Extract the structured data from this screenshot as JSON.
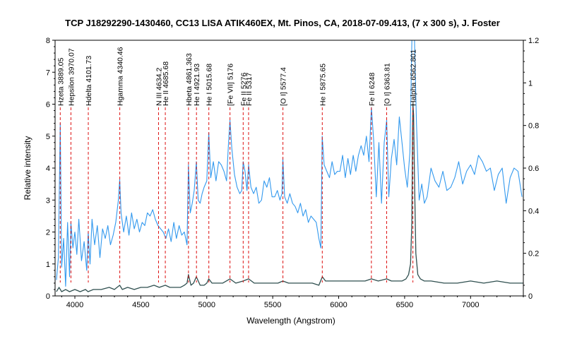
{
  "chart_data": {
    "type": "line",
    "title": "TCP J18292290-1430460, CC13 LISA ATIK460EX, Mt. Pinos, CA, 2018-07-09.413, (7 x 300 s), J. Foster",
    "xlabel": "Wavelength (Angstrom)",
    "ylabel": "Relative intensity",
    "xlim": [
      3850,
      7400
    ],
    "ylim": [
      0,
      8
    ],
    "y2lim": [
      0,
      1.2
    ],
    "xticks": [
      "4000",
      "4500",
      "5000",
      "5500",
      "6000",
      "6500",
      "7000"
    ],
    "yticks": [
      "0",
      "1",
      "2",
      "3",
      "4",
      "5",
      "6",
      "7",
      "8"
    ],
    "y2ticks": [
      "0",
      "0.2",
      "0.4",
      "0.6",
      "0.8",
      "1",
      "1.2"
    ],
    "grid": false,
    "colors": {
      "series_blue": "#3399ee",
      "series_dark": "#2f4f4f",
      "marker_line": "#dd1111"
    },
    "series": [
      {
        "axis": "left",
        "color": "#3399ee",
        "x": [
          3860,
          3875,
          3889,
          3900,
          3915,
          3930,
          3945,
          3960,
          3970,
          3985,
          4000,
          4015,
          4030,
          4050,
          4070,
          4090,
          4101,
          4115,
          4130,
          4150,
          4170,
          4190,
          4210,
          4230,
          4250,
          4270,
          4290,
          4310,
          4330,
          4340,
          4350,
          4370,
          4390,
          4410,
          4430,
          4450,
          4470,
          4490,
          4510,
          4530,
          4550,
          4570,
          4590,
          4610,
          4630,
          4650,
          4670,
          4690,
          4710,
          4730,
          4750,
          4770,
          4790,
          4810,
          4830,
          4850,
          4861,
          4875,
          4890,
          4905,
          4921,
          4935,
          4950,
          4965,
          4980,
          5000,
          5015,
          5030,
          5050,
          5070,
          5090,
          5110,
          5130,
          5150,
          5165,
          5176,
          5190,
          5210,
          5230,
          5250,
          5265,
          5276,
          5290,
          5305,
          5317,
          5335,
          5355,
          5375,
          5395,
          5415,
          5435,
          5455,
          5475,
          5495,
          5515,
          5535,
          5555,
          5570,
          5577,
          5590,
          5610,
          5630,
          5650,
          5670,
          5690,
          5710,
          5730,
          5750,
          5770,
          5790,
          5810,
          5830,
          5850,
          5865,
          5875,
          5890,
          5910,
          5930,
          5950,
          5970,
          5990,
          6010,
          6030,
          6050,
          6070,
          6090,
          6110,
          6130,
          6150,
          6170,
          6190,
          6210,
          6230,
          6248,
          6265,
          6285,
          6305,
          6325,
          6345,
          6364,
          6380,
          6400,
          6420,
          6440,
          6460,
          6480,
          6500,
          6520,
          6540,
          6555,
          6563,
          6575,
          6590,
          6610,
          6630,
          6650,
          6670,
          6700,
          6730,
          6760,
          6790,
          6820,
          6850,
          6880,
          6910,
          6940,
          6970,
          7000,
          7030,
          7060,
          7090,
          7120,
          7150,
          7180,
          7210,
          7240,
          7270,
          7300,
          7330,
          7360,
          7390
        ],
        "y": [
          0.5,
          1.2,
          5.4,
          0.9,
          1.8,
          0.3,
          2.3,
          0.6,
          2.3,
          1.5,
          2.0,
          1.3,
          2.4,
          1.1,
          1.7,
          0.8,
          2.0,
          1.0,
          2.4,
          1.6,
          2.2,
          1.2,
          2.1,
          1.8,
          2.2,
          1.6,
          1.9,
          2.3,
          3.0,
          3.65,
          2.6,
          2.0,
          2.5,
          1.9,
          2.6,
          2.1,
          2.4,
          2.0,
          2.3,
          2.2,
          2.6,
          2.5,
          2.7,
          2.4,
          2.2,
          2.1,
          2.0,
          1.8,
          2.1,
          1.7,
          2.3,
          1.8,
          2.2,
          1.9,
          2.0,
          1.6,
          4.1,
          2.6,
          2.9,
          3.3,
          4.2,
          3.0,
          2.9,
          3.2,
          3.4,
          3.6,
          5.1,
          3.7,
          4.2,
          3.6,
          4.2,
          4.1,
          3.9,
          3.6,
          4.8,
          5.5,
          4.6,
          3.8,
          3.4,
          3.2,
          3.3,
          4.2,
          3.9,
          3.3,
          4.1,
          3.4,
          3.2,
          3.4,
          2.9,
          3.0,
          3.6,
          3.4,
          3.7,
          3.1,
          3.1,
          3.3,
          3.0,
          3.2,
          4.3,
          3.1,
          2.9,
          3.2,
          2.9,
          2.8,
          2.6,
          2.9,
          2.5,
          2.7,
          2.3,
          2.5,
          2.4,
          2.3,
          1.8,
          1.5,
          5.0,
          4.1,
          3.9,
          3.7,
          4.2,
          3.8,
          3.9,
          3.9,
          4.4,
          3.7,
          4.3,
          3.8,
          4.4,
          3.9,
          4.4,
          4.7,
          4.4,
          5.0,
          4.2,
          5.9,
          4.9,
          3.1,
          4.8,
          2.9,
          4.8,
          5.5,
          3.1,
          4.3,
          4.9,
          4.1,
          5.6,
          4.8,
          4.0,
          3.4,
          4.5,
          8.0,
          8.0,
          8.0,
          5.4,
          3.0,
          3.5,
          2.9,
          3.1,
          4.0,
          3.6,
          3.4,
          3.9,
          3.3,
          3.4,
          3.7,
          4.2,
          3.5,
          3.9,
          4.1,
          3.8,
          4.4,
          4.2,
          3.9,
          4.0,
          3.3,
          3.8,
          4.0,
          2.9,
          3.7,
          4.0,
          3.9,
          3.1
        ]
      },
      {
        "axis": "right",
        "color": "#2f4f4f",
        "x": [
          3860,
          3880,
          3900,
          3930,
          3960,
          4000,
          4040,
          4080,
          4100,
          4140,
          4200,
          4260,
          4300,
          4340,
          4360,
          4400,
          4450,
          4500,
          4550,
          4600,
          4640,
          4686,
          4720,
          4760,
          4800,
          4830,
          4850,
          4861,
          4880,
          4900,
          4921,
          4950,
          4980,
          5000,
          5015,
          5040,
          5080,
          5120,
          5176,
          5220,
          5276,
          5317,
          5360,
          5420,
          5480,
          5540,
          5577,
          5620,
          5680,
          5740,
          5800,
          5850,
          5876,
          5900,
          5950,
          6000,
          6050,
          6100,
          6150,
          6200,
          6248,
          6300,
          6364,
          6400,
          6440,
          6480,
          6510,
          6530,
          6545,
          6555,
          6560,
          6563,
          6568,
          6575,
          6585,
          6600,
          6620,
          6650,
          6700,
          6800,
          6900,
          7000,
          7100,
          7200,
          7300,
          7400
        ],
        "y": [
          0.02,
          0.04,
          0.02,
          0.03,
          0.02,
          0.03,
          0.02,
          0.03,
          0.02,
          0.03,
          0.03,
          0.04,
          0.03,
          0.05,
          0.03,
          0.04,
          0.03,
          0.04,
          0.04,
          0.05,
          0.04,
          0.05,
          0.04,
          0.04,
          0.04,
          0.05,
          0.06,
          0.1,
          0.05,
          0.06,
          0.09,
          0.05,
          0.05,
          0.06,
          0.08,
          0.06,
          0.06,
          0.06,
          0.08,
          0.06,
          0.07,
          0.08,
          0.06,
          0.06,
          0.06,
          0.06,
          0.07,
          0.06,
          0.06,
          0.06,
          0.06,
          0.05,
          0.09,
          0.07,
          0.07,
          0.07,
          0.07,
          0.07,
          0.07,
          0.07,
          0.08,
          0.07,
          0.08,
          0.07,
          0.07,
          0.07,
          0.08,
          0.1,
          0.15,
          0.35,
          0.75,
          0.9,
          0.85,
          0.55,
          0.2,
          0.1,
          0.08,
          0.07,
          0.07,
          0.06,
          0.06,
          0.07,
          0.06,
          0.07,
          0.06,
          0.06
        ]
      }
    ],
    "line_markers": [
      {
        "x": 3889.05,
        "label": "Hzeta 3889.05"
      },
      {
        "x": 3970.07,
        "label": "Hepsilon 3970.07"
      },
      {
        "x": 4101.73,
        "label": "Hdelta 4101.73"
      },
      {
        "x": 4340.46,
        "label": "Hgamma 4340.46"
      },
      {
        "x": 4634.2,
        "label": "N III 4634.2"
      },
      {
        "x": 4685.68,
        "label": "He II 4685.68"
      },
      {
        "x": 4861.363,
        "label": "Hbeta 4861.363"
      },
      {
        "x": 4921.93,
        "label": "He I 4921.93"
      },
      {
        "x": 5015.68,
        "label": "He I 5015.68"
      },
      {
        "x": 5176,
        "label": "[Fe VII] 5176"
      },
      {
        "x": 5276,
        "label": "Fe II 5276"
      },
      {
        "x": 5317,
        "label": "Fe II 5317"
      },
      {
        "x": 5577.4,
        "label": "[O I] 5577.4"
      },
      {
        "x": 5875.65,
        "label": "He I 5875.65"
      },
      {
        "x": 6248,
        "label": "Fe II 6248"
      },
      {
        "x": 6363.81,
        "label": "[O I] 6363.81"
      },
      {
        "x": 6562.801,
        "label": "Halpha 6562.801"
      }
    ]
  }
}
